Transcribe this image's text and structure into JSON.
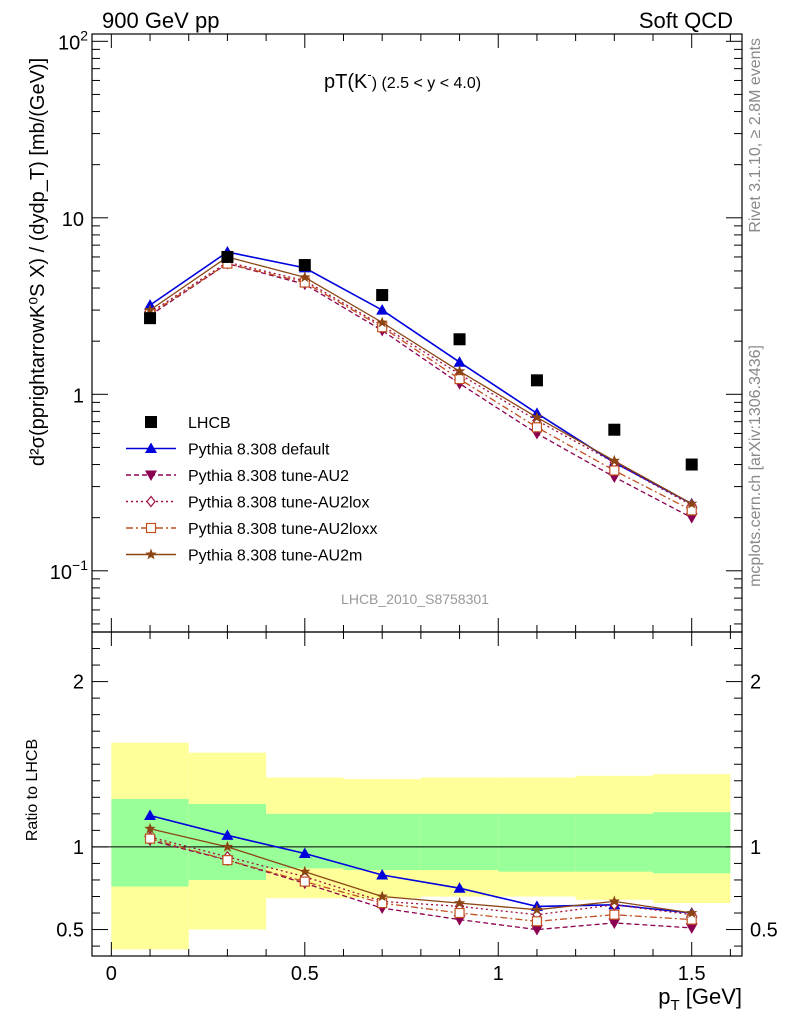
{
  "header": {
    "left": "900 GeV pp",
    "right": "Soft QCD"
  },
  "side_labels": {
    "top": "Rivet 3.1.10, ≥ 2.8M events",
    "bottom": "mcplots.cern.ch [arXiv:1306.3436]"
  },
  "colors": {
    "data": "#000000",
    "default": "#0000dd",
    "au2": "#8b0050",
    "au2lox": "#a01040",
    "au2loxx": "#c05020",
    "au2m": "#8b4513",
    "band_outer": "#ffff99",
    "band_inner": "#99ff99"
  },
  "chart_data": [
    {
      "type": "line",
      "panel": "main",
      "title_main": "pT(K",
      "title_sup": "-",
      "title_sub": ") (2.5 < y < 4.0)",
      "watermark": "LHCB_2010_S8758301",
      "ylabel": "d²σ(pprightarrowK⁰S X) / (dydp_T) [mb/(GeV)]",
      "yscale": "log",
      "xlim": [
        -0.05,
        1.63
      ],
      "ylim": [
        0.045,
        110
      ],
      "yticks": [
        {
          "value": 0.1,
          "label": "10",
          "exp": "−1"
        },
        {
          "value": 1,
          "label": "1",
          "exp": ""
        },
        {
          "value": 10,
          "label": "10",
          "exp": ""
        },
        {
          "value": 100,
          "label": "10",
          "exp": "2"
        }
      ],
      "legend_position": "bottom-left",
      "x": [
        0.1,
        0.3,
        0.5,
        0.7,
        0.9,
        1.1,
        1.3,
        1.5
      ],
      "data": {
        "name": "LHCB",
        "values": [
          2.7,
          6.0,
          5.4,
          3.65,
          2.05,
          1.2,
          0.63,
          0.4
        ]
      },
      "series": [
        {
          "key": "default",
          "name": "Pythia 8.308 default",
          "values": [
            3.2,
            6.4,
            5.2,
            3.0,
            1.52,
            0.78,
            0.41,
            0.24
          ],
          "marker": "triangle-up",
          "dash": ""
        },
        {
          "key": "au2",
          "name": "Pythia 8.308 tune-AU2",
          "values": [
            2.8,
            5.5,
            4.2,
            2.3,
            1.15,
            0.6,
            0.34,
            0.2
          ],
          "marker": "triangle-down",
          "dash": "5,3"
        },
        {
          "key": "au2lox",
          "name": "Pythia 8.308 tune-AU2lox",
          "values": [
            2.9,
            5.6,
            4.4,
            2.45,
            1.3,
            0.71,
            0.41,
            0.235
          ],
          "marker": "diamond",
          "dash": "2,3"
        },
        {
          "key": "au2loxx",
          "name": "Pythia 8.308 tune-AU2loxx",
          "values": [
            2.85,
            5.5,
            4.3,
            2.4,
            1.22,
            0.65,
            0.37,
            0.22
          ],
          "marker": "square",
          "dash": "7,3,2,3"
        },
        {
          "key": "au2m",
          "name": "Pythia 8.308 tune-AU2m",
          "values": [
            3.0,
            6.0,
            4.6,
            2.55,
            1.35,
            0.74,
            0.42,
            0.24
          ],
          "marker": "star",
          "dash": ""
        }
      ]
    },
    {
      "type": "line",
      "panel": "ratio",
      "ylabel": "Ratio to LHCB",
      "xlabel_main": "p",
      "xlabel_sub": "T",
      "xlabel_unit": " [GeV]",
      "xlim": [
        -0.05,
        1.63
      ],
      "ylim": [
        0.34,
        2.3
      ],
      "xticks": [
        {
          "value": 0,
          "label": "0"
        },
        {
          "value": 0.5,
          "label": "0.5"
        },
        {
          "value": 1,
          "label": "1"
        },
        {
          "value": 1.5,
          "label": "1.5"
        }
      ],
      "yticks": [
        {
          "value": 0.5,
          "label": "0.5"
        },
        {
          "value": 1,
          "label": "1"
        },
        {
          "value": 2,
          "label": "2"
        }
      ],
      "bands": {
        "edges": [
          0.0,
          0.2,
          0.4,
          0.6,
          0.8,
          1.0,
          1.2,
          1.4,
          1.6
        ],
        "outer_lo": [
          0.38,
          0.5,
          0.69,
          0.69,
          0.7,
          0.7,
          0.68,
          0.66
        ],
        "outer_hi": [
          1.63,
          1.57,
          1.42,
          1.41,
          1.42,
          1.42,
          1.43,
          1.44
        ],
        "inner_lo": [
          0.76,
          0.8,
          0.87,
          0.86,
          0.86,
          0.85,
          0.85,
          0.84
        ],
        "inner_hi": [
          1.29,
          1.26,
          1.2,
          1.2,
          1.2,
          1.2,
          1.2,
          1.21
        ]
      },
      "x": [
        0.1,
        0.3,
        0.5,
        0.7,
        0.9,
        1.1,
        1.3,
        1.5
      ],
      "series": [
        {
          "key": "default",
          "values": [
            1.19,
            1.07,
            0.96,
            0.83,
            0.75,
            0.64,
            0.65,
            0.6
          ]
        },
        {
          "key": "au2",
          "values": [
            1.04,
            0.92,
            0.78,
            0.63,
            0.56,
            0.5,
            0.54,
            0.51
          ]
        },
        {
          "key": "au2lox",
          "values": [
            1.06,
            0.94,
            0.82,
            0.67,
            0.64,
            0.59,
            0.65,
            0.59
          ]
        },
        {
          "key": "au2loxx",
          "values": [
            1.05,
            0.92,
            0.79,
            0.66,
            0.6,
            0.55,
            0.59,
            0.56
          ]
        },
        {
          "key": "au2m",
          "values": [
            1.11,
            1.0,
            0.85,
            0.7,
            0.66,
            0.62,
            0.67,
            0.6
          ]
        }
      ]
    }
  ]
}
